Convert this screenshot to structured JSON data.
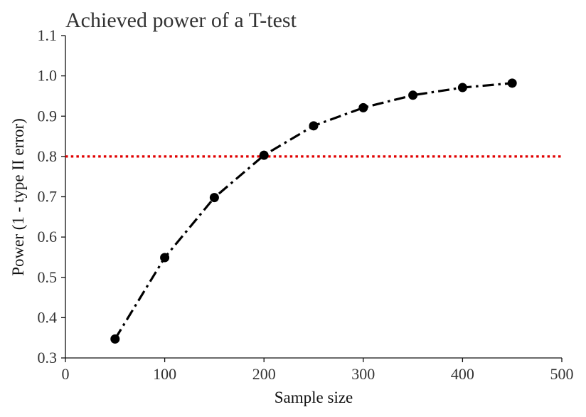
{
  "chart_data": {
    "type": "line",
    "title": "Achieved power of a T-test",
    "xlabel": "Sample size",
    "ylabel": "Power (1 - type II error)",
    "xlim": [
      0,
      500
    ],
    "ylim": [
      0.3,
      1.1
    ],
    "x_ticks": [
      "0",
      "100",
      "200",
      "300",
      "400",
      "500"
    ],
    "y_ticks": [
      "0.3",
      "0.4",
      "0.5",
      "0.6",
      "0.7",
      "0.8",
      "0.9",
      "1.0",
      "1.1"
    ],
    "grid": false,
    "series": [
      {
        "x": [
          50,
          100,
          150,
          200,
          250,
          300,
          350,
          400,
          450
        ],
        "values": [
          0.347,
          0.549,
          0.698,
          0.803,
          0.876,
          0.921,
          0.952,
          0.971,
          0.982
        ],
        "color": "#000000",
        "line_style": "dash-dot",
        "marker": "circle"
      }
    ],
    "reference_lines": [
      {
        "orientation": "horizontal",
        "y": 0.8,
        "color": "#e00000",
        "line_style": "dotted"
      }
    ]
  }
}
